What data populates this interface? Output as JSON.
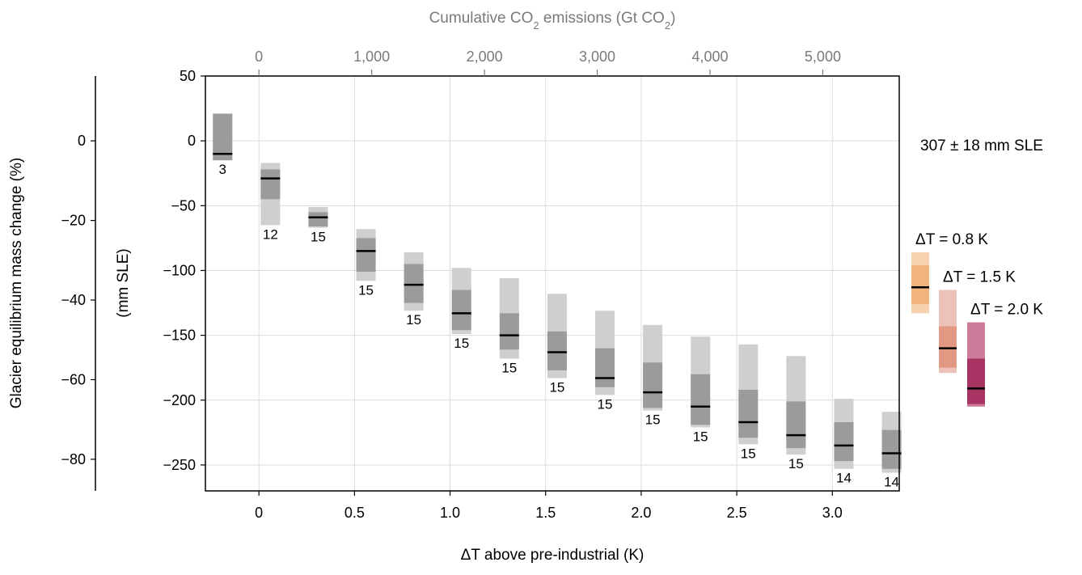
{
  "chart_data": {
    "type": "box",
    "x_axis": {
      "label": "ΔT above pre-industrial (K)",
      "range": [
        -0.28,
        3.35
      ],
      "ticks": [
        0,
        0.5,
        1.0,
        1.5,
        2.0,
        2.5,
        3.0
      ],
      "tick_labels": [
        "0",
        "0.5",
        "1.0",
        "1.5",
        "2.0",
        "2.5",
        "3.0"
      ]
    },
    "top_axis": {
      "label_prefix": "Cumulative CO",
      "label_sub": "2",
      "label_mid": " emissions (Gt CO",
      "label_sub2": "2",
      "label_suffix": ")",
      "ticks": [
        {
          "label": "0",
          "dT": 0
        },
        {
          "label": "1,000",
          "dT": 0.59
        },
        {
          "label": "2,000",
          "dT": 1.18
        },
        {
          "label": "3,000",
          "dT": 1.77
        },
        {
          "label": "4,000",
          "dT": 2.36
        },
        {
          "label": "5,000",
          "dT": 2.95
        }
      ]
    },
    "y_axis": {
      "label": "(mm SLE)",
      "range": [
        -270,
        50
      ],
      "ticks": [
        50,
        0,
        -50,
        -100,
        -150,
        -200,
        -250
      ],
      "tick_labels": [
        "50",
        "0",
        "−50",
        "−100",
        "−150",
        "−200",
        "−250"
      ]
    },
    "y_axis_left": {
      "label": "Glacier equilibrium mass change (%)",
      "ticks": [
        0,
        -20,
        -40,
        -60,
        -80
      ],
      "tick_labels": [
        "0",
        "−20",
        "−40",
        "−60",
        "−80"
      ],
      "mm_per_percent": 3.07
    },
    "grid": true,
    "annotation": "307 ± 18 mm SLE",
    "series": [
      {
        "x": -0.19,
        "median": -10,
        "inner": [
          -15,
          21
        ],
        "outer": [
          -15,
          21
        ],
        "n": "3"
      },
      {
        "x": 0.06,
        "median": -29,
        "inner": [
          -45,
          -22
        ],
        "outer": [
          -65,
          -17
        ],
        "n": "12"
      },
      {
        "x": 0.31,
        "median": -59,
        "inner": [
          -66,
          -55
        ],
        "outer": [
          -67,
          -51
        ],
        "n": "15"
      },
      {
        "x": 0.56,
        "median": -85,
        "inner": [
          -101,
          -75
        ],
        "outer": [
          -108,
          -68
        ],
        "n": "15"
      },
      {
        "x": 0.81,
        "median": -111,
        "inner": [
          -125,
          -95
        ],
        "outer": [
          -131,
          -86
        ],
        "n": "15"
      },
      {
        "x": 1.06,
        "median": -133,
        "inner": [
          -146,
          -115
        ],
        "outer": [
          -149,
          -98
        ],
        "n": "15"
      },
      {
        "x": 1.31,
        "median": -150,
        "inner": [
          -161,
          -133
        ],
        "outer": [
          -168,
          -106
        ],
        "n": "15"
      },
      {
        "x": 1.56,
        "median": -163,
        "inner": [
          -177,
          -147
        ],
        "outer": [
          -183,
          -118
        ],
        "n": "15"
      },
      {
        "x": 1.81,
        "median": -183,
        "inner": [
          -190,
          -160
        ],
        "outer": [
          -196,
          -131
        ],
        "n": "15"
      },
      {
        "x": 2.06,
        "median": -194,
        "inner": [
          -206,
          -171
        ],
        "outer": [
          -208,
          -142
        ],
        "n": "15"
      },
      {
        "x": 2.31,
        "median": -205,
        "inner": [
          -219,
          -180
        ],
        "outer": [
          -221,
          -151
        ],
        "n": "15"
      },
      {
        "x": 2.56,
        "median": -217,
        "inner": [
          -229,
          -192
        ],
        "outer": [
          -234,
          -157
        ],
        "n": "15"
      },
      {
        "x": 2.81,
        "median": -227,
        "inner": [
          -237,
          -201
        ],
        "outer": [
          -242,
          -166
        ],
        "n": "15"
      },
      {
        "x": 3.06,
        "median": -235,
        "inner": [
          -247,
          -217
        ],
        "outer": [
          -253,
          -199
        ],
        "n": "14"
      },
      {
        "x": 3.31,
        "median": -241,
        "inner": [
          -253,
          -223
        ],
        "outer": [
          -256,
          -209
        ],
        "n": "14"
      }
    ],
    "legend": [
      {
        "label": "ΔT = 0.8 K",
        "median": -113,
        "inner": [
          -126,
          -96
        ],
        "outer": [
          -133,
          -86
        ],
        "color_outer": "#f7d2b1",
        "color_inner": "#f2b37c"
      },
      {
        "label": "ΔT = 1.5 K",
        "median": -160,
        "inner": [
          -175,
          -143
        ],
        "outer": [
          -179,
          -115
        ],
        "color_outer": "#edc2bb",
        "color_inner": "#e39884"
      },
      {
        "label": "ΔT = 2.0 K",
        "median": -191,
        "inner": [
          -203,
          -168
        ],
        "outer": [
          -205,
          -140
        ],
        "color_outer": "#cc7b9a",
        "color_inner": "#a73463"
      }
    ],
    "colors": {
      "outer_box": "#cfcfcf",
      "inner_box": "#9b9b9b",
      "median": "#000000",
      "grid": "#dcdcdc",
      "top_axis_text": "#7a7a7a"
    }
  }
}
